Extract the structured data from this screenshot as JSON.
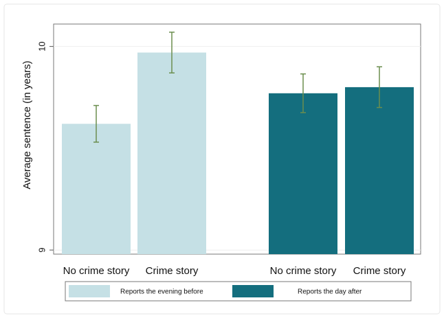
{
  "chart_data": {
    "type": "bar",
    "y_label": "Average sentence (in years)",
    "categories": [
      "No crime story",
      "Crime story",
      "No crime story",
      "Crime story"
    ],
    "series": [
      {
        "name": "Reports the evening before",
        "color": "#c5e0e5",
        "values": [
          9.62,
          9.97,
          null,
          null
        ],
        "errors": [
          0.09,
          0.1,
          null,
          null
        ]
      },
      {
        "name": "Reports the day after",
        "color": "#146e7e",
        "values": [
          null,
          null,
          9.77,
          9.8
        ],
        "errors": [
          null,
          null,
          0.095,
          0.1
        ]
      }
    ],
    "error_color": "#6b8e4e",
    "ylim": [
      8.98,
      10.11
    ],
    "yticks": [
      9,
      10
    ],
    "grid": true,
    "legend": "bottom"
  }
}
